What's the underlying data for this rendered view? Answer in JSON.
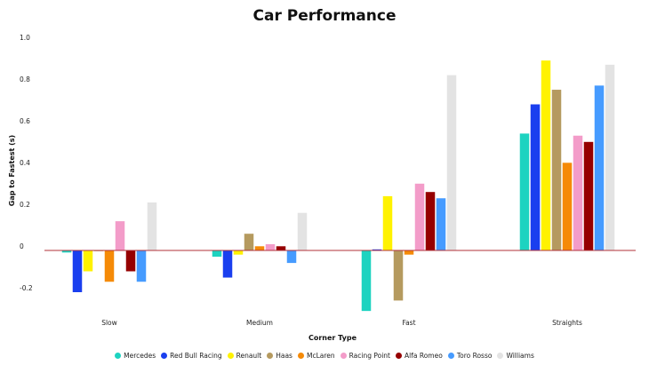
{
  "chart_data": {
    "type": "bar",
    "title": "Car Performance",
    "xlabel": "Corner Type",
    "ylabel": "Gap to Fastest (s)",
    "categories": [
      "Slow",
      "Medium",
      "Fast",
      "Straights"
    ],
    "ylim": [
      -0.3,
      1.0
    ],
    "yticks": [
      -0.2,
      0,
      0.2,
      0.4,
      0.6,
      0.8,
      1.0
    ],
    "ytick_labels": [
      "-0.2",
      "0",
      "0.2",
      "0.4",
      "0.6",
      "0.8",
      "1.0"
    ],
    "grid": false,
    "legend_position": "bottom",
    "zero_line_color": "#b0303a",
    "series": [
      {
        "name": "Mercedes",
        "color": "#1dd3c0",
        "values": [
          -0.01,
          -0.03,
          -0.29,
          0.56
        ]
      },
      {
        "name": "Red Bull Racing",
        "color": "#1a3fef",
        "values": [
          -0.2,
          -0.13,
          0.005,
          0.7
        ]
      },
      {
        "name": "Renault",
        "color": "#fff200",
        "values": [
          -0.1,
          -0.02,
          0.26,
          0.91
        ]
      },
      {
        "name": "Haas",
        "color": "#b59a5f",
        "values": [
          0.0,
          0.08,
          -0.24,
          0.77
        ]
      },
      {
        "name": "McLaren",
        "color": "#f58a07",
        "values": [
          -0.15,
          0.02,
          -0.02,
          0.42
        ]
      },
      {
        "name": "Racing Point",
        "color": "#f39cc9",
        "values": [
          0.14,
          0.03,
          0.32,
          0.55
        ]
      },
      {
        "name": "Alfa Romeo",
        "color": "#960000",
        "values": [
          -0.1,
          0.02,
          0.28,
          0.52
        ]
      },
      {
        "name": "Toro Rosso",
        "color": "#469bff",
        "values": [
          -0.15,
          -0.06,
          0.25,
          0.79
        ]
      },
      {
        "name": "Williams",
        "color": "#e3e3e3",
        "values": [
          0.23,
          0.18,
          0.84,
          0.89
        ]
      }
    ]
  }
}
